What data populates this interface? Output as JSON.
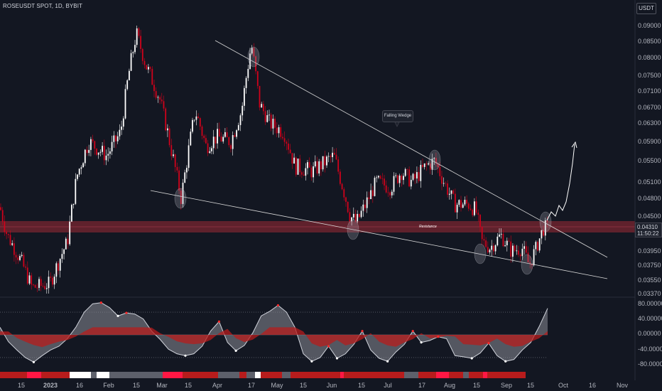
{
  "header": {
    "title": "ROSEUSDT SPOT, 1D, BYBIT",
    "currency": "USDT"
  },
  "price_tag": {
    "price": "0.04310",
    "countdown": "11:50:22"
  },
  "colors": {
    "up": "#ffffff",
    "down": "#d0021b",
    "background": "#131722",
    "resistance": "#7a2530",
    "indicator_fill_up": "#8a8d96",
    "indicator_fill_down": "#b71c1c"
  },
  "chart_data": [
    {
      "type": "candlestick",
      "title": "ROSEUSDT SPOT, 1D, BYBIT",
      "y_ticks": [
        "0.09000",
        "0.08500",
        "0.08000",
        "0.07500",
        "0.07100",
        "0.06700",
        "0.06300",
        "0.05900",
        "0.05500",
        "0.05100",
        "0.04800",
        "0.04500",
        "0.03950",
        "0.03750",
        "0.03550",
        "0.03370"
      ],
      "x_ticks": [
        "15",
        "2023",
        "16",
        "Feb",
        "15",
        "Mar",
        "15",
        "Apr",
        "17",
        "May",
        "15",
        "Jun",
        "15",
        "Jul",
        "17",
        "Aug",
        "15",
        "Sep",
        "15",
        "Oct",
        "16",
        "Nov"
      ],
      "ylim": [
        0.0335,
        0.0915
      ],
      "annotations": {
        "callout": "Falling Wedge",
        "zone_label": "Resistance"
      },
      "key_points": [
        {
          "date": "Dec 2022",
          "price": 0.0345
        },
        {
          "date": "Feb 2023",
          "price": 0.0875
        },
        {
          "date": "Mar 2023",
          "price": 0.048
        },
        {
          "date": "Apr 2023",
          "price": 0.084
        },
        {
          "date": "Jun 2023",
          "price": 0.044
        },
        {
          "date": "Jul 2023",
          "price": 0.055
        },
        {
          "date": "Aug 2023",
          "price": 0.04
        },
        {
          "date": "Sep 2023",
          "price": 0.0375
        },
        {
          "date": "Sep 2023",
          "price": 0.0431
        }
      ],
      "resistance_zone": [
        0.0422,
        0.0442
      ]
    },
    {
      "type": "area",
      "title": "",
      "y_ticks": [
        "80.00000",
        "40.00000",
        "0.00000",
        "-40.00000",
        "-80.00000"
      ],
      "ylim": [
        -92,
        92
      ],
      "levels": [
        60,
        -60
      ],
      "oscillator": [
        20,
        -18,
        -40,
        -60,
        -72,
        -55,
        -40,
        -30,
        -10,
        20,
        60,
        82,
        85,
        72,
        50,
        58,
        55,
        42,
        10,
        -12,
        -38,
        -50,
        -55,
        -50,
        -30,
        10,
        35,
        -20,
        -42,
        -28,
        5,
        50,
        62,
        78,
        60,
        20,
        -50,
        -70,
        -60,
        -30,
        -62,
        -50,
        -25,
        10,
        -40,
        -62,
        -70,
        -45,
        -25,
        10,
        -20,
        -15,
        -5,
        -10,
        -55,
        -58,
        -62,
        -48,
        -22,
        -55,
        -70,
        -65,
        -40,
        -20,
        22,
        70
      ]
    }
  ]
}
